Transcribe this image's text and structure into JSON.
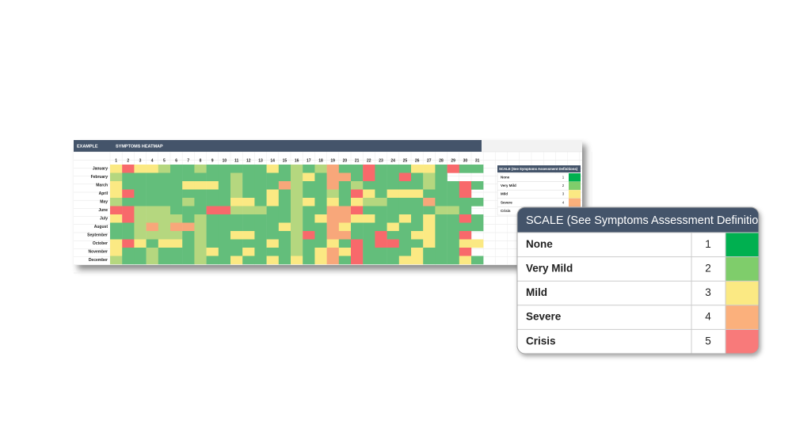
{
  "header": {
    "label": "EXAMPLE",
    "title": "SYMPTOMS HEATMAP"
  },
  "chart_data": {
    "type": "heatmap",
    "x": [
      1,
      2,
      3,
      4,
      5,
      6,
      7,
      8,
      9,
      10,
      11,
      12,
      13,
      14,
      15,
      16,
      17,
      18,
      19,
      20,
      21,
      22,
      23,
      24,
      25,
      26,
      27,
      28,
      29,
      30,
      31
    ],
    "y": [
      "January",
      "February",
      "March",
      "April",
      "May",
      "June",
      "July",
      "August",
      "September",
      "October",
      "November",
      "December"
    ],
    "colors": [
      "#63be7b",
      "#b5d77f",
      "#fbe983",
      "#f8a77a",
      "#f8696b"
    ],
    "values": [
      [
        3,
        5,
        3,
        3,
        2,
        1,
        1,
        2,
        1,
        1,
        1,
        1,
        1,
        3,
        1,
        2,
        1,
        2,
        4,
        1,
        1,
        5,
        1,
        1,
        1,
        3,
        3,
        1,
        5,
        1,
        1
      ],
      [
        2,
        1,
        1,
        1,
        1,
        1,
        1,
        1,
        1,
        1,
        2,
        1,
        1,
        1,
        1,
        2,
        3,
        1,
        4,
        4,
        1,
        5,
        1,
        1,
        5,
        1,
        2,
        1,
        null,
        null,
        null
      ],
      [
        3,
        1,
        1,
        1,
        1,
        1,
        3,
        3,
        3,
        1,
        2,
        1,
        1,
        1,
        4,
        2,
        1,
        1,
        4,
        1,
        2,
        1,
        1,
        1,
        1,
        1,
        2,
        1,
        1,
        5,
        1
      ],
      [
        3,
        5,
        1,
        1,
        1,
        1,
        1,
        1,
        1,
        1,
        2,
        1,
        1,
        3,
        1,
        2,
        1,
        1,
        2,
        1,
        5,
        3,
        1,
        3,
        3,
        3,
        1,
        1,
        1,
        5,
        null
      ],
      [
        2,
        1,
        1,
        1,
        1,
        1,
        2,
        1,
        1,
        1,
        3,
        3,
        1,
        3,
        1,
        2,
        3,
        1,
        3,
        1,
        3,
        2,
        2,
        1,
        1,
        1,
        4,
        1,
        1,
        1,
        1
      ],
      [
        5,
        5,
        2,
        2,
        2,
        1,
        1,
        1,
        5,
        5,
        2,
        2,
        2,
        1,
        1,
        2,
        1,
        1,
        4,
        4,
        5,
        1,
        1,
        1,
        1,
        1,
        1,
        2,
        2,
        1,
        null
      ],
      [
        3,
        5,
        2,
        2,
        2,
        2,
        1,
        2,
        1,
        1,
        1,
        1,
        1,
        1,
        1,
        2,
        1,
        3,
        4,
        4,
        3,
        3,
        1,
        1,
        3,
        1,
        3,
        1,
        1,
        5,
        1
      ],
      [
        1,
        1,
        2,
        4,
        2,
        4,
        4,
        2,
        1,
        1,
        1,
        1,
        1,
        1,
        3,
        2,
        1,
        1,
        4,
        3,
        1,
        1,
        1,
        3,
        1,
        1,
        3,
        1,
        1,
        1,
        1
      ],
      [
        1,
        1,
        2,
        2,
        2,
        2,
        1,
        2,
        1,
        1,
        3,
        3,
        1,
        1,
        1,
        2,
        5,
        1,
        4,
        4,
        1,
        1,
        5,
        1,
        1,
        3,
        3,
        1,
        1,
        5,
        null
      ],
      [
        3,
        5,
        3,
        1,
        3,
        3,
        1,
        2,
        1,
        1,
        1,
        1,
        1,
        3,
        1,
        2,
        1,
        1,
        3,
        1,
        5,
        1,
        5,
        5,
        1,
        1,
        3,
        1,
        1,
        3,
        3
      ],
      [
        3,
        1,
        1,
        2,
        1,
        1,
        1,
        2,
        3,
        1,
        1,
        3,
        1,
        1,
        1,
        2,
        1,
        3,
        4,
        3,
        5,
        1,
        1,
        1,
        1,
        3,
        1,
        1,
        1,
        5,
        null
      ],
      [
        2,
        1,
        1,
        2,
        1,
        1,
        1,
        2,
        1,
        1,
        3,
        1,
        1,
        3,
        1,
        3,
        1,
        3,
        4,
        1,
        5,
        1,
        1,
        1,
        3,
        3,
        1,
        1,
        1,
        3,
        1
      ]
    ]
  },
  "scale": {
    "title": "SCALE (See Symptoms Assessment Definitions)",
    "levels": [
      {
        "name": "None",
        "value": 1,
        "color": "#00b050"
      },
      {
        "name": "Very Mild",
        "value": 2,
        "color": "#7fcd6b"
      },
      {
        "name": "Mild",
        "value": 3,
        "color": "#fbe983"
      },
      {
        "name": "Severe",
        "value": 4,
        "color": "#fbb07c"
      },
      {
        "name": "Crisis",
        "value": 5,
        "color": "#f87a7a"
      }
    ]
  }
}
